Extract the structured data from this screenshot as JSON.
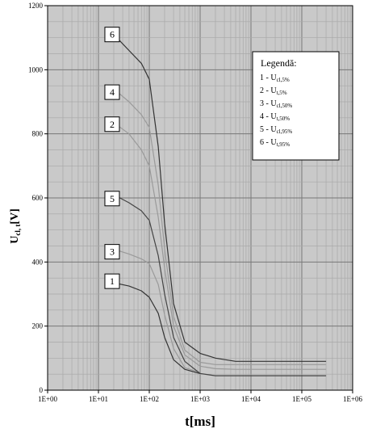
{
  "chart_data": {
    "type": "line",
    "x_scale": "log",
    "xlim": [
      1,
      1000000
    ],
    "ylim": [
      0,
      1200
    ],
    "grid": true,
    "x_tick_labels": [
      "1E+00",
      "1E+01",
      "1E+02",
      "1E+03",
      "1E+04",
      "1E+05",
      "1E+06"
    ],
    "y_tick_labels": [
      "0",
      "200",
      "400",
      "600",
      "800",
      "1000",
      "1200"
    ],
    "xlabel": "t[ms]",
    "ylabel": "U",
    "ylabel_sub": "cl, t",
    "ylabel_unit": "[V]",
    "legend": {
      "title": "Legendă:",
      "placement": "top-right",
      "entries": [
        {
          "prefix": "1 - U",
          "sub": "cl,5%"
        },
        {
          "prefix": "2 - U",
          "sub": "t,5%"
        },
        {
          "prefix": "3 - U",
          "sub": "cl,50%"
        },
        {
          "prefix": "4 - U",
          "sub": "t,50%"
        },
        {
          "prefix": "5 - U",
          "sub": "cl,95%"
        },
        {
          "prefix": "6 - U",
          "sub": "t,95%"
        }
      ]
    },
    "series": [
      {
        "name": "1",
        "color": "#333333",
        "x": [
          20,
          40,
          70,
          100,
          150,
          200,
          300,
          500,
          1000
        ],
        "y": [
          335,
          325,
          310,
          290,
          240,
          165,
          95,
          65,
          52
        ]
      },
      {
        "name": "2",
        "color": "#9a9a9a",
        "x": [
          20,
          40,
          70,
          100,
          150,
          200,
          300,
          500,
          1000,
          2000,
          5000,
          10000,
          50000,
          300000
        ],
        "y": [
          835,
          800,
          750,
          700,
          540,
          380,
          200,
          110,
          75,
          67,
          65,
          65,
          65,
          65
        ]
      },
      {
        "name": "3",
        "color": "#9a9a9a",
        "x": [
          20,
          40,
          70,
          100,
          150,
          200,
          300,
          500,
          1000
        ],
        "y": [
          440,
          425,
          410,
          395,
          330,
          235,
          130,
          70,
          55
        ]
      },
      {
        "name": "4",
        "color": "#9a9a9a",
        "x": [
          20,
          40,
          70,
          100,
          150,
          200,
          300,
          500,
          1000,
          2000,
          5000,
          10000,
          50000,
          300000
        ],
        "y": [
          940,
          900,
          860,
          820,
          640,
          440,
          230,
          125,
          87,
          80,
          80,
          80,
          80,
          80
        ]
      },
      {
        "name": "5",
        "color": "#444444",
        "x": [
          20,
          40,
          70,
          100,
          150,
          200,
          300,
          500,
          1000,
          2000,
          5000,
          10000,
          50000,
          300000
        ],
        "y": [
          610,
          585,
          560,
          530,
          420,
          300,
          165,
          90,
          52,
          45,
          45,
          45,
          45,
          45
        ]
      },
      {
        "name": "6",
        "color": "#333333",
        "x": [
          20,
          40,
          70,
          100,
          150,
          200,
          300,
          500,
          1000,
          2000,
          5000,
          10000,
          50000,
          300000
        ],
        "y": [
          1110,
          1060,
          1020,
          970,
          760,
          520,
          270,
          150,
          115,
          100,
          90,
          90,
          90,
          90
        ]
      }
    ],
    "curve_labels": [
      {
        "text": "1",
        "x": 20,
        "y": 340
      },
      {
        "text": "2",
        "x": 20,
        "y": 830
      },
      {
        "text": "3",
        "x": 20,
        "y": 432
      },
      {
        "text": "4",
        "x": 20,
        "y": 930
      },
      {
        "text": "5",
        "x": 20,
        "y": 598
      },
      {
        "text": "6",
        "x": 20,
        "y": 1110
      }
    ]
  }
}
